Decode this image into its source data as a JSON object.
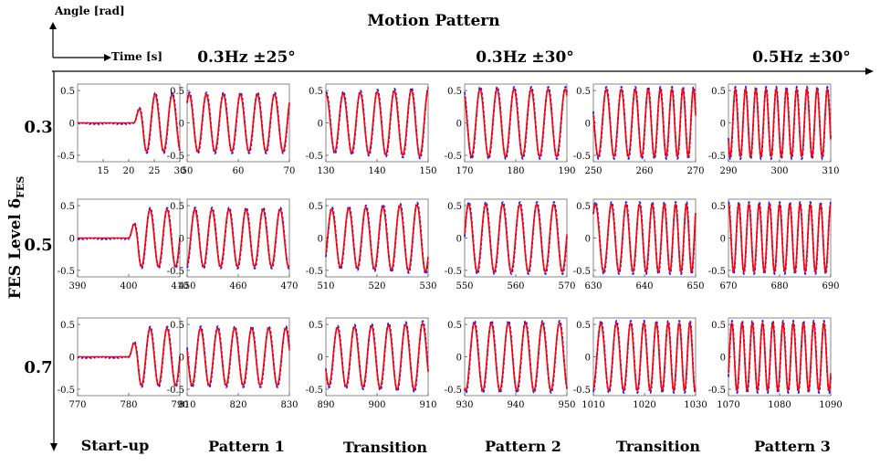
{
  "header": {
    "motion_pattern": "Motion Pattern",
    "legend_y": "Angle [rad]",
    "legend_x": "Time [s]",
    "y_axis_title": "FES Level δ",
    "y_axis_sub": "FES",
    "patterns": [
      {
        "label": "0.3Hz ±25°"
      },
      {
        "label": "0.3Hz ±30°"
      },
      {
        "label": "0.5Hz ±30°"
      }
    ]
  },
  "columns": [
    "Start-up",
    "Pattern 1",
    "Transition",
    "Pattern 2",
    "Transition",
    "Pattern 3"
  ],
  "rows": [
    "0.3",
    "0.5",
    "0.7"
  ],
  "colors": {
    "reference": "#ff0000",
    "measured": "#1a1aff",
    "border": "#888888"
  },
  "chart_data": {
    "type": "line",
    "series": [
      {
        "color": "#ff0000",
        "style": "solid"
      },
      {
        "color": "#1a1aff",
        "style": "dashed"
      }
    ],
    "ylim": [
      -0.6,
      0.6
    ],
    "yticks": [
      "0.5",
      "0",
      "-0.5"
    ],
    "yticks_values": [
      0.5,
      0,
      -0.5
    ],
    "panels": [
      {
        "row": "0.3",
        "col": "Start-up",
        "xlim": [
          10,
          30
        ],
        "xticks": [
          "15",
          "20",
          "25",
          "30"
        ],
        "onset": 21,
        "freq": 0.3,
        "amp": 0.44
      },
      {
        "row": "0.3",
        "col": "Pattern 1",
        "xlim": [
          50,
          70
        ],
        "xticks": [
          "50",
          "60",
          "70"
        ],
        "freq": 0.3,
        "amp": 0.44
      },
      {
        "row": "0.3",
        "col": "Transition",
        "xlim": [
          130,
          150
        ],
        "xticks": [
          "130",
          "140",
          "150"
        ],
        "freq": 0.3,
        "amp": [
          0.44,
          0.52
        ]
      },
      {
        "row": "0.3",
        "col": "Pattern 2",
        "xlim": [
          170,
          190
        ],
        "xticks": [
          "170",
          "180",
          "190"
        ],
        "freq": 0.3,
        "amp": 0.52
      },
      {
        "row": "0.3",
        "col": "Transition",
        "xlim": [
          250,
          270
        ],
        "xticks": [
          "250",
          "260",
          "270"
        ],
        "freq": [
          0.3,
          0.5
        ],
        "amp": 0.52
      },
      {
        "row": "0.3",
        "col": "Pattern 3",
        "xlim": [
          290,
          310
        ],
        "xticks": [
          "290",
          "300",
          "310"
        ],
        "freq": 0.5,
        "amp": 0.52
      },
      {
        "row": "0.5",
        "col": "Start-up",
        "xlim": [
          390,
          410
        ],
        "xticks": [
          "390",
          "400",
          "410"
        ],
        "onset": 400,
        "freq": 0.3,
        "amp": 0.44
      },
      {
        "row": "0.5",
        "col": "Pattern 1",
        "xlim": [
          450,
          470
        ],
        "xticks": [
          "450",
          "460",
          "470"
        ],
        "freq": 0.3,
        "amp": 0.44
      },
      {
        "row": "0.5",
        "col": "Transition",
        "xlim": [
          510,
          530
        ],
        "xticks": [
          "510",
          "520",
          "530"
        ],
        "freq": 0.3,
        "amp": [
          0.44,
          0.52
        ]
      },
      {
        "row": "0.5",
        "col": "Pattern 2",
        "xlim": [
          550,
          570
        ],
        "xticks": [
          "550",
          "560",
          "570"
        ],
        "freq": 0.3,
        "amp": 0.52
      },
      {
        "row": "0.5",
        "col": "Transition",
        "xlim": [
          630,
          650
        ],
        "xticks": [
          "630",
          "640",
          "650"
        ],
        "freq": [
          0.3,
          0.5
        ],
        "amp": 0.52
      },
      {
        "row": "0.5",
        "col": "Pattern 3",
        "xlim": [
          670,
          690
        ],
        "xticks": [
          "670",
          "680",
          "690"
        ],
        "freq": 0.5,
        "amp": 0.52
      },
      {
        "row": "0.7",
        "col": "Start-up",
        "xlim": [
          770,
          790
        ],
        "xticks": [
          "770",
          "780",
          "790"
        ],
        "onset": 780,
        "freq": 0.3,
        "amp": 0.44
      },
      {
        "row": "0.7",
        "col": "Pattern 1",
        "xlim": [
          810,
          830
        ],
        "xticks": [
          "810",
          "820",
          "830"
        ],
        "freq": 0.3,
        "amp": 0.44
      },
      {
        "row": "0.7",
        "col": "Transition",
        "xlim": [
          890,
          910
        ],
        "xticks": [
          "890",
          "900",
          "910"
        ],
        "freq": 0.3,
        "amp": [
          0.44,
          0.52
        ]
      },
      {
        "row": "0.7",
        "col": "Pattern 2",
        "xlim": [
          930,
          950
        ],
        "xticks": [
          "930",
          "940",
          "950"
        ],
        "freq": 0.3,
        "amp": 0.52
      },
      {
        "row": "0.7",
        "col": "Transition",
        "xlim": [
          1010,
          1030
        ],
        "xticks": [
          "1010",
          "1020",
          "1030"
        ],
        "freq": [
          0.3,
          0.5
        ],
        "amp": 0.52
      },
      {
        "row": "0.7",
        "col": "Pattern 3",
        "xlim": [
          1070,
          1090
        ],
        "xticks": [
          "1070",
          "1080",
          "1090"
        ],
        "freq": 0.5,
        "amp": 0.52
      }
    ]
  }
}
